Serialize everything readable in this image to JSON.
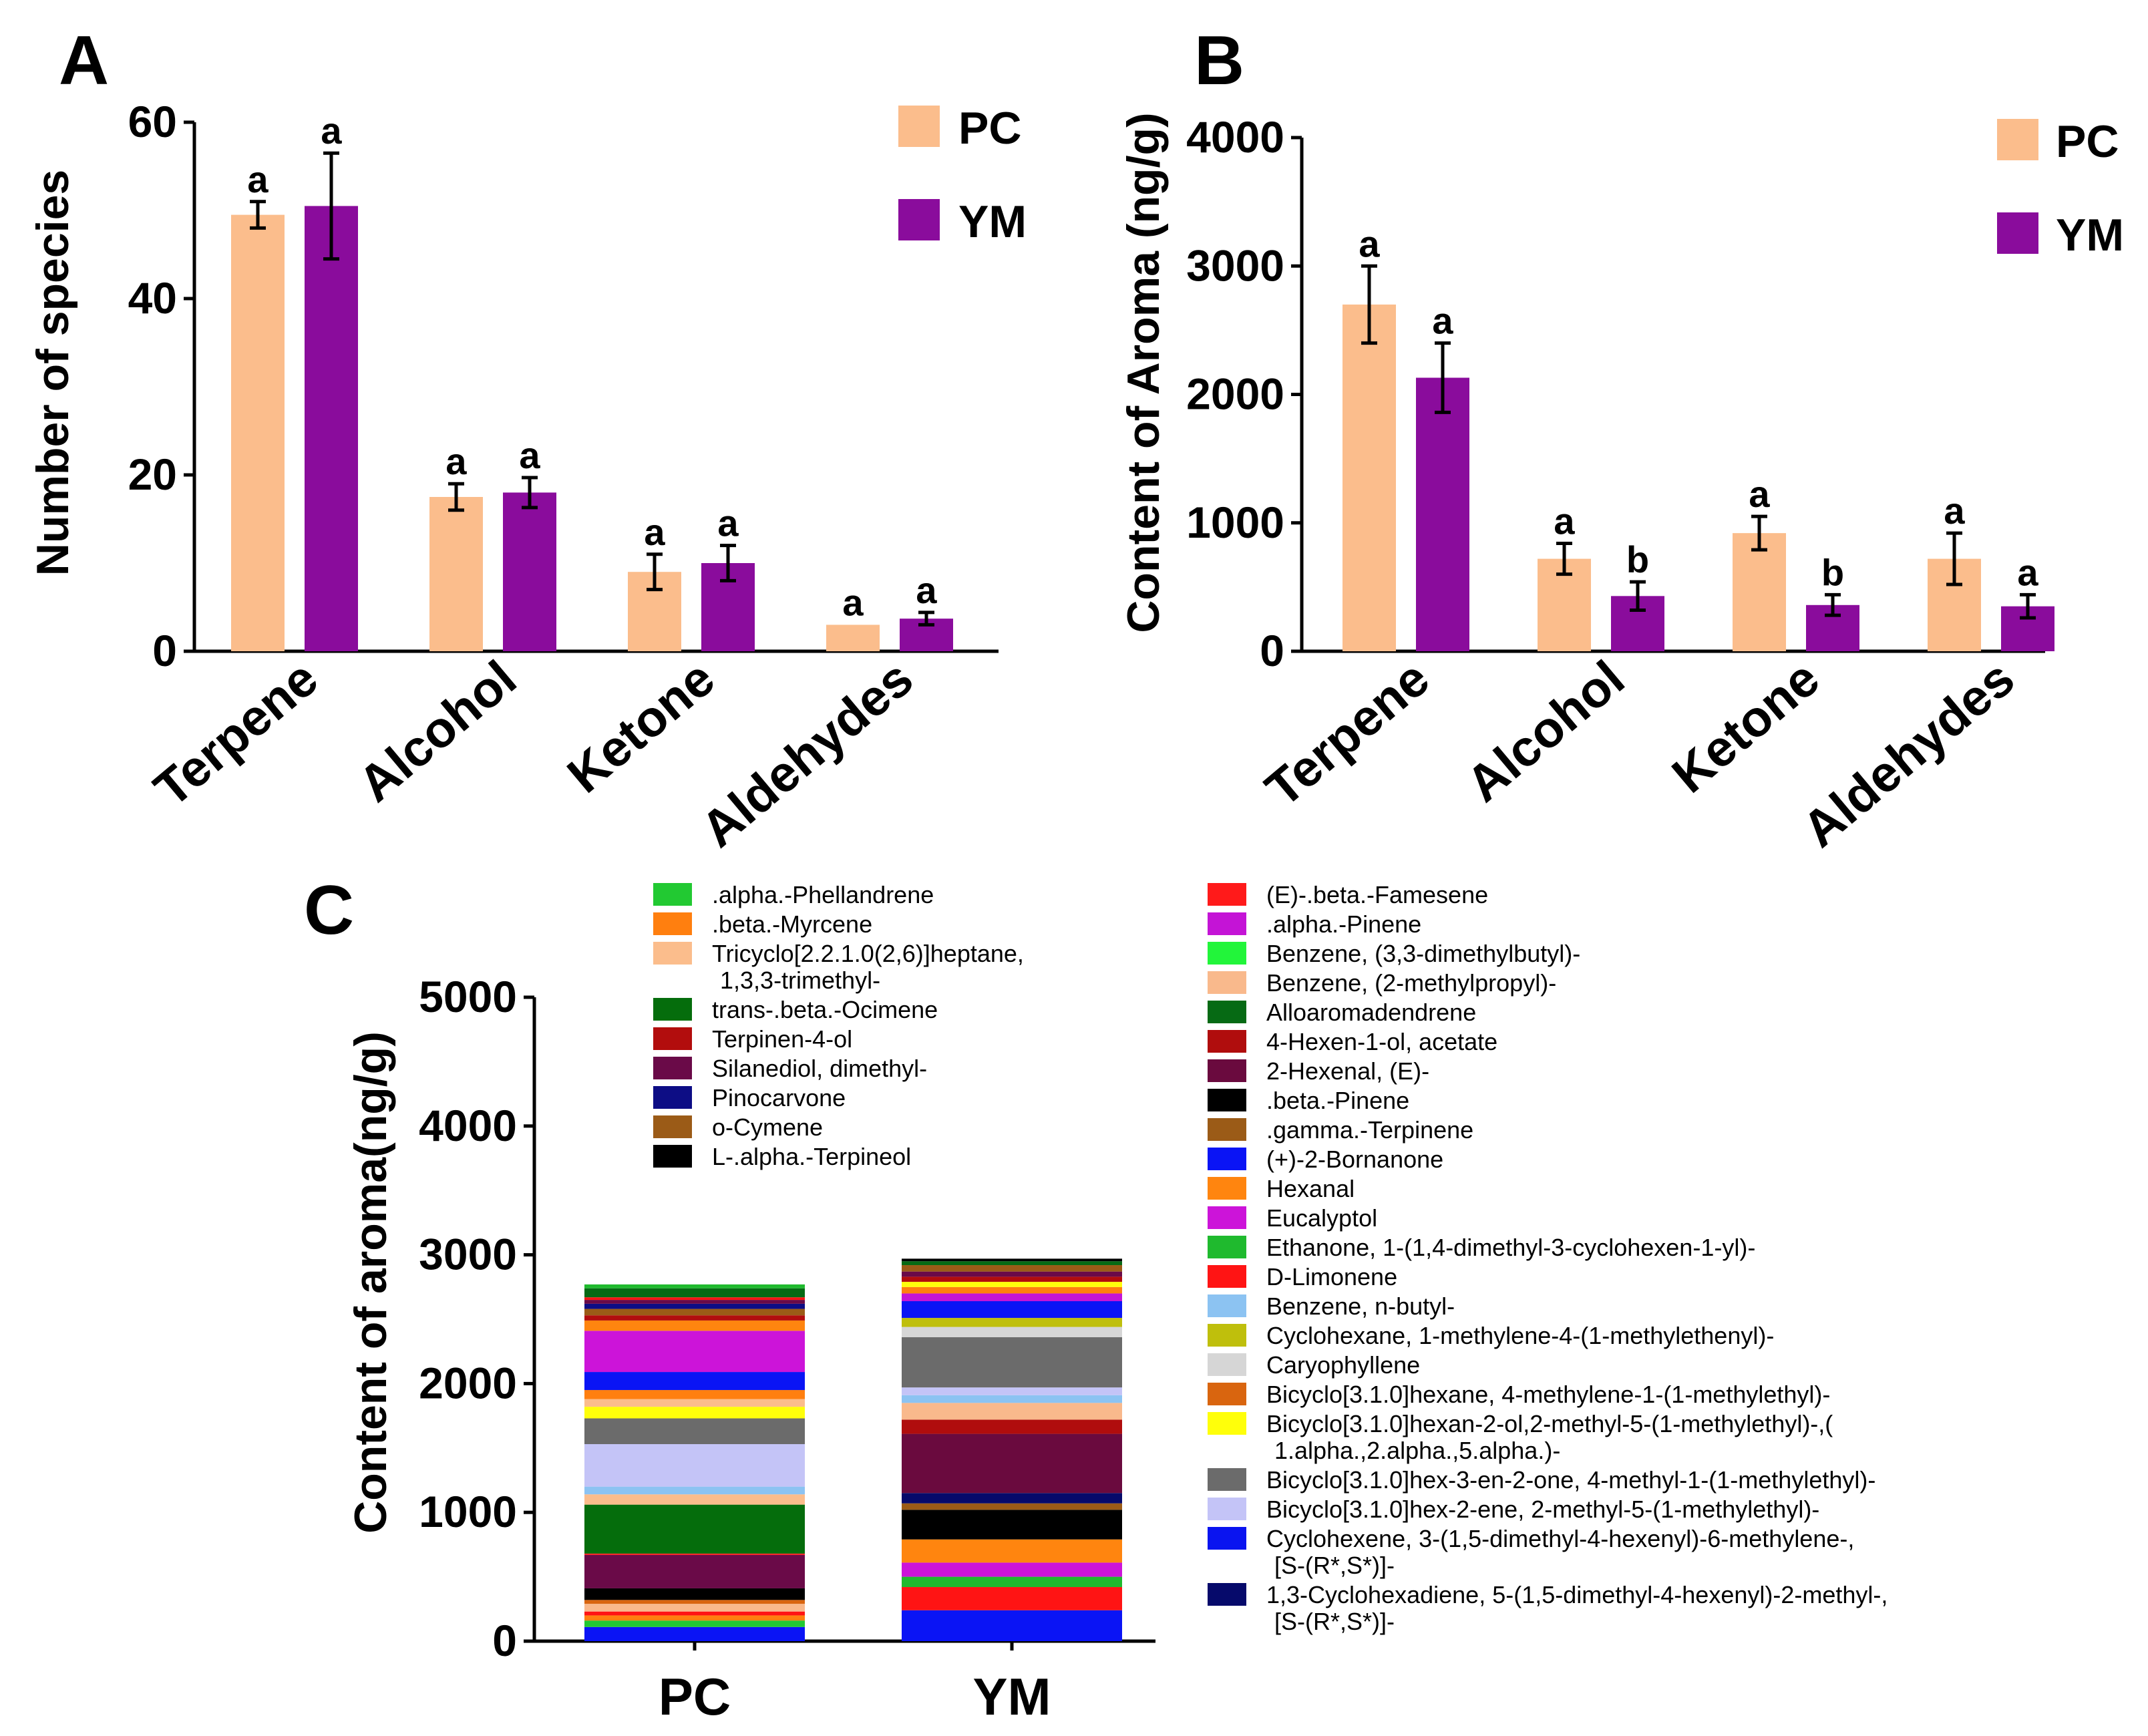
{
  "chart_data": [
    {
      "panel": "A",
      "type": "bar",
      "ylabel": "Number of species",
      "ylim": [
        0,
        60
      ],
      "yticks": [
        0,
        20,
        40,
        60
      ],
      "categories": [
        "Terpene",
        "Alcohol",
        "Ketone",
        "Aldehydes"
      ],
      "series": [
        {
          "name": "PC",
          "color": "#fbbd8c",
          "values": [
            49.5,
            17.5,
            9,
            3
          ],
          "errors": [
            1.5,
            1.5,
            2,
            0
          ],
          "letters": [
            "a",
            "a",
            "a",
            "a"
          ]
        },
        {
          "name": "YM",
          "color": "#8a0c9c",
          "values": [
            50.5,
            18,
            10,
            3.7
          ],
          "errors": [
            6,
            1.7,
            2,
            0.7
          ],
          "letters": [
            "a",
            "a",
            "a",
            "a"
          ]
        }
      ],
      "legend": "top-right"
    },
    {
      "panel": "B",
      "type": "bar",
      "ylabel": "Content of Aroma (ng/g)",
      "ylim": [
        0,
        4000
      ],
      "yticks": [
        0,
        1000,
        2000,
        3000,
        4000
      ],
      "categories": [
        "Terpene",
        "Alcohol",
        "Ketone",
        "Aldehydes"
      ],
      "series": [
        {
          "name": "PC",
          "color": "#fbbd8c",
          "values": [
            2700,
            720,
            920,
            720
          ],
          "errors": [
            300,
            120,
            130,
            200
          ],
          "letters": [
            "a",
            "a",
            "a",
            "a"
          ]
        },
        {
          "name": "YM",
          "color": "#8a0c9c",
          "values": [
            2130,
            430,
            360,
            350
          ],
          "errors": [
            270,
            110,
            80,
            90
          ],
          "letters": [
            "a",
            "b",
            "b",
            "a"
          ]
        }
      ],
      "legend": "top-right"
    },
    {
      "panel": "C",
      "type": "bar",
      "stacked": true,
      "ylabel": "Content of aroma(ng/g)",
      "ylim": [
        0,
        5000
      ],
      "yticks": [
        0,
        1000,
        2000,
        3000,
        4000,
        5000
      ],
      "categories": [
        "PC",
        "YM"
      ],
      "legend": "top",
      "legend_col1": [
        {
          "name": ".alpha.-Phellandrene",
          "color": "#22c932"
        },
        {
          "name": ".beta.-Myrcene",
          "color": "#ff7f0f"
        },
        {
          "name": "Tricyclo[2.2.1.0(2,6)]heptane,",
          "name2": "1,3,3-trimethyl-",
          "color": "#fbbd8c"
        },
        {
          "name": "trans-.beta.-Ocimene",
          "color": "#056d0c"
        },
        {
          "name": "Terpinen-4-ol",
          "color": "#b20d0d"
        },
        {
          "name": "Silanediol, dimethyl-",
          "color": "#6a0a48"
        },
        {
          "name": "Pinocarvone",
          "color": "#0d0d85"
        },
        {
          "name": "o-Cymene",
          "color": "#9b5b17"
        },
        {
          "name": "L-.alpha.-Terpineol",
          "color": "#000000"
        }
      ],
      "legend_col2": [
        {
          "name": "(E)-.beta.-Famesene",
          "color": "#ff1a1a"
        },
        {
          "name": ".alpha.-Pinene",
          "color": "#c414d6"
        },
        {
          "name": "Benzene, (3,3-dimethylbutyl)-",
          "color": "#22f53a"
        },
        {
          "name": "Benzene, (2-methylpropyl)-",
          "color": "#f9b98c"
        },
        {
          "name": "Alloaromadendrene",
          "color": "#066a14"
        },
        {
          "name": "4-Hexen-1-ol, acetate",
          "color": "#b00d0d"
        },
        {
          "name": "2-Hexenal, (E)-",
          "color": "#6a0a3e"
        },
        {
          "name": ".beta.-Pinene",
          "color": "#000000"
        },
        {
          "name": ".gamma.-Terpinene",
          "color": "#9b5b17"
        },
        {
          "name": "(+)-2-Bornanone",
          "color": "#0a14f5"
        },
        {
          "name": "Hexanal",
          "color": "#ff850f"
        },
        {
          "name": "Eucalyptol",
          "color": "#cc14d9"
        },
        {
          "name": "Ethanone, 1-(1,4-dimethyl-3-cyclohexen-1-yl)-",
          "color": "#1fba2e"
        },
        {
          "name": "D-Limonene",
          "color": "#ff1414"
        },
        {
          "name": "Benzene, n-butyl-",
          "color": "#8cc3f2"
        },
        {
          "name": "Cyclohexane, 1-methylene-4-(1-methylethenyl)-",
          "color": "#bfbf0c"
        },
        {
          "name": "Caryophyllene",
          "color": "#d6d6d6"
        },
        {
          "name": "Bicyclo[3.1.0]hexane, 4-methylene-1-(1-methylethyl)-",
          "color": "#d9650f"
        },
        {
          "name": "Bicyclo[3.1.0]hexan-2-ol,2-methyl-5-(1-methylethyl)-,(",
          "name2": "1.alpha.,2.alpha.,5.alpha.)-",
          "color": "#ffff0a"
        },
        {
          "name": "Bicyclo[3.1.0]hex-3-en-2-one, 4-methyl-1-(1-methylethyl)-",
          "color": "#6b6b6b"
        },
        {
          "name": "Bicyclo[3.1.0]hex-2-ene, 2-methyl-5-(1-methylethyl)-",
          "color": "#c4c4f7"
        },
        {
          "name": "Cyclohexene, 3-(1,5-dimethyl-4-hexenyl)-6-methylene-,",
          "name2": "[S-(R*,S*)]-",
          "color": "#0a14f0"
        },
        {
          "name": "1,3-Cyclohexadiene, 5-(1,5-dimethyl-4-hexenyl)-2-methyl-,",
          "name2": "[S-(R*,S*)]-",
          "color": "#060a6b"
        }
      ],
      "stacks": [
        {
          "category": "PC",
          "segments": [
            {
              "color": "#0a14f5",
              "value": 110
            },
            {
              "color": "#22c932",
              "value": 50
            },
            {
              "color": "#ff7f0f",
              "value": 40
            },
            {
              "color": "#ff1414",
              "value": 30
            },
            {
              "color": "#f9b98c",
              "value": 60
            },
            {
              "color": "#d9650f",
              "value": 30
            },
            {
              "color": "#000000",
              "value": 90
            },
            {
              "color": "#6a0a48",
              "value": 260
            },
            {
              "color": "#ff1a1a",
              "value": 10
            },
            {
              "color": "#056d0c",
              "value": 380
            },
            {
              "color": "#fbbd8c",
              "value": 80
            },
            {
              "color": "#8cc3f2",
              "value": 60
            },
            {
              "color": "#c4c4f7",
              "value": 330
            },
            {
              "color": "#6b6b6b",
              "value": 200
            },
            {
              "color": "#ffff0a",
              "value": 90
            },
            {
              "color": "#fbbd8c",
              "value": 60
            },
            {
              "color": "#ff7f0f",
              "value": 70
            },
            {
              "color": "#0a14f5",
              "value": 140
            },
            {
              "color": "#cc14d9",
              "value": 320
            },
            {
              "color": "#ff850f",
              "value": 80
            },
            {
              "color": "#b20d0d",
              "value": 40
            },
            {
              "color": "#9b5b17",
              "value": 50
            },
            {
              "color": "#0d0d85",
              "value": 40
            },
            {
              "color": "#6a0a48",
              "value": 30
            },
            {
              "color": "#ff1414",
              "value": 20
            },
            {
              "color": "#066a14",
              "value": 70
            },
            {
              "color": "#1fba2e",
              "value": 30
            }
          ]
        },
        {
          "category": "YM",
          "segments": [
            {
              "color": "#0a14f5",
              "value": 240
            },
            {
              "color": "#ff1414",
              "value": 180
            },
            {
              "color": "#1fba2e",
              "value": 80
            },
            {
              "color": "#cc14d9",
              "value": 110
            },
            {
              "color": "#ff850f",
              "value": 180
            },
            {
              "color": "#000000",
              "value": 230
            },
            {
              "color": "#9b5b17",
              "value": 50
            },
            {
              "color": "#060a6b",
              "value": 80
            },
            {
              "color": "#6a0a3e",
              "value": 460
            },
            {
              "color": "#b00d0d",
              "value": 110
            },
            {
              "color": "#f9b98c",
              "value": 130
            },
            {
              "color": "#8cc3f2",
              "value": 60
            },
            {
              "color": "#c4c4f7",
              "value": 60
            },
            {
              "color": "#6b6b6b",
              "value": 390
            },
            {
              "color": "#d6d6d6",
              "value": 80
            },
            {
              "color": "#bfbf0c",
              "value": 70
            },
            {
              "color": "#0a14f5",
              "value": 130
            },
            {
              "color": "#c414d6",
              "value": 60
            },
            {
              "color": "#ff7f0f",
              "value": 50
            },
            {
              "color": "#ffff0a",
              "value": 40
            },
            {
              "color": "#b20d0d",
              "value": 40
            },
            {
              "color": "#6a0a48",
              "value": 40
            },
            {
              "color": "#9b5b17",
              "value": 50
            },
            {
              "color": "#066a14",
              "value": 30
            },
            {
              "color": "#000000",
              "value": 20
            }
          ]
        }
      ]
    }
  ],
  "panel_labels": {
    "a": "A",
    "b": "B",
    "c": "C"
  },
  "panel_a": {
    "ylabel": "Number of species",
    "legend": [
      {
        "label": "PC"
      },
      {
        "label": "YM"
      }
    ]
  },
  "panel_b": {
    "ylabel": "Content of Aroma (ng/g)",
    "legend": [
      {
        "label": "PC"
      },
      {
        "label": "YM"
      }
    ]
  },
  "panel_c": {
    "ylabel": "Content of aroma(ng/g)"
  }
}
